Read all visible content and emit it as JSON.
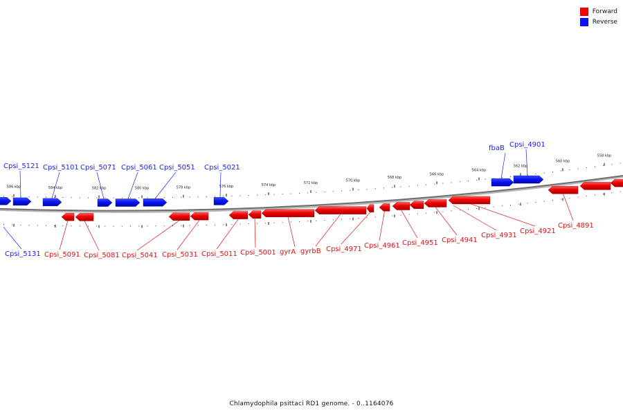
{
  "legend": {
    "forward_label": "Forward",
    "reverse_label": "Reverse",
    "forward_color": "#ff0000",
    "reverse_color": "#0a14f0"
  },
  "caption": "Chlamydophila psittaci RD1 genome. - 0..1164076",
  "scale_labels": [
    "586 kbp",
    "584 kbp",
    "582 kbp",
    "580 kbp",
    "578 kbp",
    "576 kbp",
    "574 kbp",
    "572 kbp",
    "570 kbp",
    "568 kbp",
    "566 kbp",
    "564 kbp",
    "562 kbp",
    "560 kbp",
    "558 kbp"
  ],
  "genes": {
    "reverse": [
      {
        "name": "Cpsi_5131"
      },
      {
        "name": "Cpsi_5121"
      },
      {
        "name": "Cpsi_5101"
      },
      {
        "name": "Cpsi_5071"
      },
      {
        "name": "Cpsi_5061"
      },
      {
        "name": "Cpsi_5051"
      },
      {
        "name": "Cpsi_5021"
      },
      {
        "name": "fbaB"
      },
      {
        "name": "Cpsi_4901"
      }
    ],
    "forward": [
      {
        "name": "Cpsi_5091"
      },
      {
        "name": "Cpsi_5081"
      },
      {
        "name": "Cpsi_5041"
      },
      {
        "name": "Cpsi_5031"
      },
      {
        "name": "Cpsi_5011"
      },
      {
        "name": "Cpsi_5001"
      },
      {
        "name": "gyrA"
      },
      {
        "name": "gyrbB"
      },
      {
        "name": "Cpsi_4971"
      },
      {
        "name": "Cpsi_4961"
      },
      {
        "name": "Cpsi_4951"
      },
      {
        "name": "Cpsi_4941"
      },
      {
        "name": "Cpsi_4931"
      },
      {
        "name": "Cpsi_4921"
      },
      {
        "name": "Cpsi_4891"
      }
    ]
  }
}
